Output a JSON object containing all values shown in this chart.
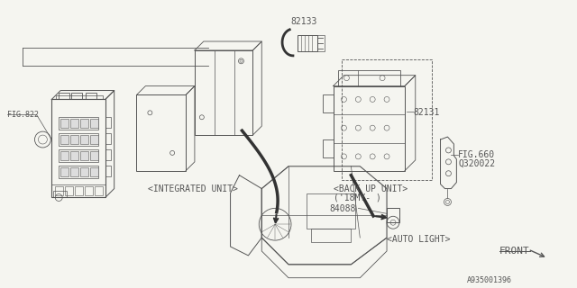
{
  "bg_color": "#f5f5f0",
  "line_color": "#555555",
  "dark_line": "#333333",
  "labels": {
    "fig822": "FIG.822",
    "integrated_unit": "<INTEGRATED UNIT>",
    "part82133": "82133",
    "part82131": "82131",
    "backup_unit": "<BACK UP UNIT>",
    "backup_unit2": "('18MY- )",
    "fig660": "FIG.660",
    "q320022": "Q320022",
    "part84088": "84088",
    "auto_light": "<AUTO LIGHT>",
    "front": "FRONT",
    "diagram_id": "A935001396"
  },
  "fs": 6.0,
  "fs_label": 7.0
}
